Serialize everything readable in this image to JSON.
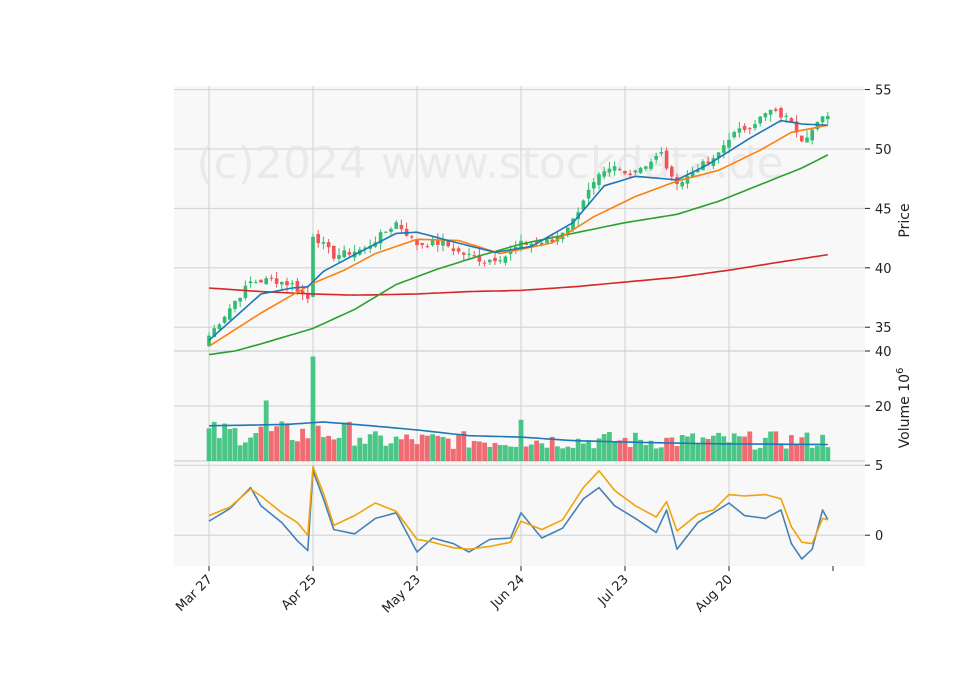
{
  "chart_data": {
    "type": "candlestick",
    "watermark": "(c)2024 www.stockdata.de",
    "x_tick_labels": [
      "Mar 27",
      "Apr 25",
      "May 23",
      "Jun 24",
      "Jul 23",
      "Aug 20"
    ],
    "x_tick_indices": [
      0,
      20,
      40,
      60,
      80,
      100
    ],
    "n_bars": 120,
    "colors": {
      "up": "#2ebd72",
      "down": "#f0545a",
      "ma_fast": "#1f77b4",
      "ma_medium": "#ff7f0e",
      "ma_slow": "#2ca02c",
      "ma_long": "#d62728",
      "volume_ma": "#1f77b4",
      "osc_a": "#f0a30a",
      "osc_b": "#4682b4",
      "panel_bg": "#f8f8f8",
      "grid": "#d0d0d0"
    },
    "price_panel": {
      "ylabel": "Price",
      "ylim": [
        33,
        55.3
      ],
      "yticks": [
        35,
        40,
        45,
        50,
        55
      ],
      "close_anchors": [
        [
          0,
          34.3
        ],
        [
          5,
          37.2
        ],
        [
          8,
          38.8
        ],
        [
          12,
          39.0
        ],
        [
          16,
          38.6
        ],
        [
          19,
          37.4
        ],
        [
          20,
          42.8
        ],
        [
          24,
          41.0
        ],
        [
          30,
          41.6
        ],
        [
          36,
          43.8
        ],
        [
          40,
          42.0
        ],
        [
          45,
          42.1
        ],
        [
          48,
          41.3
        ],
        [
          53,
          40.6
        ],
        [
          57,
          41.0
        ],
        [
          60,
          42.0
        ],
        [
          66,
          42.2
        ],
        [
          70,
          44.0
        ],
        [
          72,
          45.8
        ],
        [
          75,
          47.6
        ],
        [
          78,
          48.4
        ],
        [
          80,
          47.9
        ],
        [
          84,
          48.7
        ],
        [
          87,
          49.6
        ],
        [
          89,
          47.4
        ],
        [
          91,
          47.3
        ],
        [
          94,
          48.5
        ],
        [
          97,
          49.0
        ],
        [
          100,
          51.0
        ],
        [
          104,
          52.0
        ],
        [
          108,
          53.2
        ],
        [
          112,
          52.4
        ],
        [
          114,
          50.9
        ],
        [
          116,
          51.6
        ],
        [
          119,
          53.0
        ]
      ],
      "ma_fast_anchors": [
        [
          0,
          33.9
        ],
        [
          10,
          37.8
        ],
        [
          16,
          38.3
        ],
        [
          19,
          38.4
        ],
        [
          22,
          39.7
        ],
        [
          28,
          41.1
        ],
        [
          36,
          42.9
        ],
        [
          40,
          43.0
        ],
        [
          46,
          42.3
        ],
        [
          55,
          41.3
        ],
        [
          62,
          41.8
        ],
        [
          70,
          43.8
        ],
        [
          76,
          46.9
        ],
        [
          82,
          47.7
        ],
        [
          90,
          47.4
        ],
        [
          96,
          48.7
        ],
        [
          104,
          50.9
        ],
        [
          110,
          52.4
        ],
        [
          114,
          52.1
        ],
        [
          119,
          52.0
        ]
      ],
      "ma_medium_anchors": [
        [
          0,
          33.4
        ],
        [
          10,
          36.2
        ],
        [
          20,
          38.7
        ],
        [
          26,
          39.8
        ],
        [
          32,
          41.2
        ],
        [
          40,
          42.4
        ],
        [
          48,
          42.3
        ],
        [
          56,
          41.2
        ],
        [
          66,
          42.1
        ],
        [
          74,
          44.3
        ],
        [
          82,
          46.0
        ],
        [
          90,
          47.3
        ],
        [
          98,
          48.2
        ],
        [
          106,
          49.9
        ],
        [
          112,
          51.4
        ],
        [
          119,
          52.0
        ]
      ],
      "ma_slow_anchors": [
        [
          0,
          32.7
        ],
        [
          5,
          33.0
        ],
        [
          10,
          33.6
        ],
        [
          20,
          34.9
        ],
        [
          28,
          36.5
        ],
        [
          36,
          38.6
        ],
        [
          44,
          39.9
        ],
        [
          52,
          41.0
        ],
        [
          60,
          42.0
        ],
        [
          70,
          42.9
        ],
        [
          80,
          43.8
        ],
        [
          90,
          44.5
        ],
        [
          98,
          45.6
        ],
        [
          106,
          47.0
        ],
        [
          114,
          48.4
        ],
        [
          119,
          49.5
        ]
      ],
      "ma_long_anchors": [
        [
          0,
          38.3
        ],
        [
          10,
          38.0
        ],
        [
          20,
          37.8
        ],
        [
          28,
          37.7
        ],
        [
          40,
          37.8
        ],
        [
          50,
          38.0
        ],
        [
          60,
          38.1
        ],
        [
          70,
          38.4
        ],
        [
          80,
          38.8
        ],
        [
          90,
          39.2
        ],
        [
          100,
          39.8
        ],
        [
          110,
          40.5
        ],
        [
          119,
          41.1
        ]
      ]
    },
    "volume_panel": {
      "ylabel": "Volume",
      "ylabel_exponent": "6",
      "ylabel_base": "10",
      "ylim": [
        0,
        40
      ],
      "yticks": [
        20,
        40
      ],
      "y_tick_labels": [
        "20",
        "40"
      ],
      "spike_index": 20,
      "spike_value": 38,
      "spikes": [
        [
          11,
          22
        ],
        [
          20,
          38
        ],
        [
          60,
          15
        ]
      ],
      "base_level": 7.5,
      "ma_anchors": [
        [
          0,
          12.8
        ],
        [
          15,
          13.3
        ],
        [
          22,
          14.2
        ],
        [
          30,
          13.0
        ],
        [
          40,
          11.3
        ],
        [
          50,
          9.2
        ],
        [
          60,
          8.7
        ],
        [
          70,
          7.4
        ],
        [
          80,
          6.9
        ],
        [
          90,
          6.5
        ],
        [
          100,
          6.2
        ],
        [
          110,
          6.1
        ],
        [
          119,
          6.0
        ]
      ]
    },
    "oscillator_panel": {
      "ylim": [
        -2.2,
        5.3
      ],
      "yticks": [
        0,
        5
      ],
      "series_a_anchors": [
        [
          0,
          1.4
        ],
        [
          4,
          2.0
        ],
        [
          8,
          3.3
        ],
        [
          10,
          2.8
        ],
        [
          14,
          1.6
        ],
        [
          17,
          0.9
        ],
        [
          19,
          0.0
        ],
        [
          20,
          4.9
        ],
        [
          22,
          3.0
        ],
        [
          24,
          0.7
        ],
        [
          28,
          1.4
        ],
        [
          32,
          2.3
        ],
        [
          36,
          1.7
        ],
        [
          40,
          -0.3
        ],
        [
          43,
          -0.5
        ],
        [
          47,
          -0.9
        ],
        [
          50,
          -1.0
        ],
        [
          54,
          -0.8
        ],
        [
          58,
          -0.5
        ],
        [
          60,
          1.0
        ],
        [
          64,
          0.4
        ],
        [
          68,
          1.1
        ],
        [
          72,
          3.4
        ],
        [
          75,
          4.6
        ],
        [
          78,
          3.2
        ],
        [
          82,
          2.1
        ],
        [
          86,
          1.3
        ],
        [
          88,
          2.4
        ],
        [
          90,
          0.3
        ],
        [
          94,
          1.5
        ],
        [
          97,
          1.8
        ],
        [
          100,
          2.9
        ],
        [
          103,
          2.8
        ],
        [
          107,
          2.9
        ],
        [
          110,
          2.6
        ],
        [
          112,
          0.6
        ],
        [
          114,
          -0.5
        ],
        [
          116,
          -0.6
        ],
        [
          118,
          1.2
        ],
        [
          119,
          1.1
        ]
      ],
      "series_b_anchors": [
        [
          0,
          1.0
        ],
        [
          4,
          1.9
        ],
        [
          8,
          3.4
        ],
        [
          10,
          2.1
        ],
        [
          14,
          0.9
        ],
        [
          17,
          -0.4
        ],
        [
          19,
          -1.1
        ],
        [
          20,
          4.6
        ],
        [
          22,
          2.6
        ],
        [
          24,
          0.4
        ],
        [
          28,
          0.1
        ],
        [
          32,
          1.2
        ],
        [
          36,
          1.6
        ],
        [
          40,
          -1.2
        ],
        [
          43,
          -0.2
        ],
        [
          47,
          -0.6
        ],
        [
          50,
          -1.2
        ],
        [
          54,
          -0.3
        ],
        [
          58,
          -0.2
        ],
        [
          60,
          1.6
        ],
        [
          64,
          -0.2
        ],
        [
          68,
          0.5
        ],
        [
          72,
          2.6
        ],
        [
          75,
          3.4
        ],
        [
          78,
          2.1
        ],
        [
          82,
          1.2
        ],
        [
          86,
          0.2
        ],
        [
          88,
          1.8
        ],
        [
          90,
          -1.0
        ],
        [
          94,
          0.9
        ],
        [
          97,
          1.6
        ],
        [
          100,
          2.3
        ],
        [
          103,
          1.4
        ],
        [
          107,
          1.2
        ],
        [
          110,
          1.8
        ],
        [
          112,
          -0.6
        ],
        [
          114,
          -1.7
        ],
        [
          116,
          -1.0
        ],
        [
          118,
          1.8
        ],
        [
          119,
          1.1
        ]
      ]
    }
  }
}
